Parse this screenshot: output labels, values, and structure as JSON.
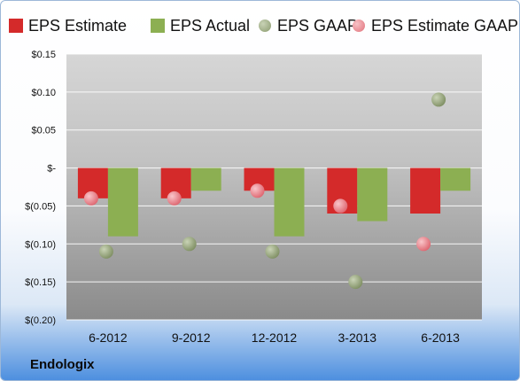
{
  "chart_data": {
    "type": "bar",
    "categories": [
      "6-2012",
      "9-2012",
      "12-2012",
      "3-2013",
      "6-2013"
    ],
    "series": [
      {
        "name": "EPS Estimate",
        "kind": "bar",
        "color": "#d42a2a",
        "values": [
          -0.04,
          -0.04,
          -0.03,
          -0.06,
          -0.06
        ]
      },
      {
        "name": "EPS Actual",
        "kind": "bar",
        "color": "#8caf52",
        "values": [
          -0.09,
          -0.03,
          -0.09,
          -0.07,
          -0.03
        ]
      },
      {
        "name": "EPS GAAP",
        "kind": "dot",
        "color": "#98a87c",
        "values": [
          -0.11,
          -0.1,
          -0.11,
          -0.15,
          0.09
        ]
      },
      {
        "name": "EPS Estimate GAAP",
        "kind": "dot",
        "color": "#e87f86",
        "values": [
          -0.04,
          -0.04,
          -0.03,
          -0.05,
          -0.1
        ]
      }
    ],
    "yticks": [
      0.15,
      0.1,
      0.05,
      0,
      -0.05,
      -0.1,
      -0.15,
      -0.2
    ],
    "ytick_labels": [
      "$0.15",
      "$0.10",
      "$0.05",
      "$-",
      "$(0.05)",
      "$(0.10)",
      "$(0.15)",
      "$(0.20)"
    ],
    "ylim": [
      -0.2,
      0.15
    ],
    "grid": true,
    "legend_position": "top"
  },
  "footer": {
    "company": "Endologix"
  }
}
